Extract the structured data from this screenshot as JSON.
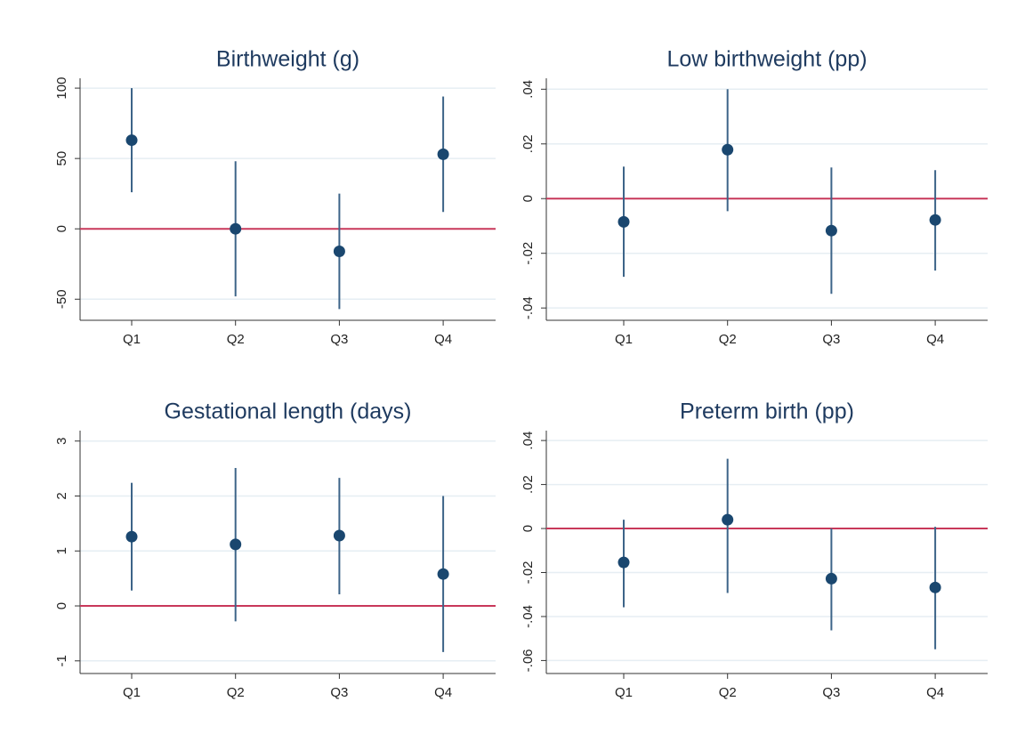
{
  "chart_data": [
    {
      "type": "errorbar",
      "title": "Birthweight (g)",
      "categories": [
        "Q1",
        "Q2",
        "Q3",
        "Q4"
      ],
      "values": [
        63,
        0,
        -16,
        53
      ],
      "lower": [
        26,
        -48,
        -57,
        12
      ],
      "upper": [
        100,
        48,
        25,
        94
      ],
      "color": "#1a476f",
      "ylim": [
        -65,
        107
      ],
      "yticks": [
        -50,
        0,
        50,
        100
      ],
      "grid": true,
      "refline": 0,
      "refline_color": "#c8385a"
    },
    {
      "type": "errorbar",
      "title": "Low birthweight (pp)",
      "categories": [
        "Q1",
        "Q2",
        "Q3",
        "Q4"
      ],
      "values": [
        -0.0085,
        0.0179,
        -0.0117,
        -0.0078
      ],
      "lower": [
        -0.0286,
        -0.0046,
        -0.0348,
        -0.0263
      ],
      "upper": [
        0.0117,
        0.04,
        0.0114,
        0.0104
      ],
      "color": "#1a476f",
      "ylim": [
        -0.0445,
        0.044
      ],
      "yticks": [
        {
          "value": -0.04,
          "label": "-.04"
        },
        {
          "value": -0.02,
          "label": "-.02"
        },
        0,
        {
          "value": 0.02,
          "label": ".02"
        },
        {
          "value": 0.04,
          "label": ".04"
        }
      ],
      "grid": true,
      "refline": 0,
      "refline_color": "#c8385a"
    },
    {
      "type": "errorbar",
      "title": "Gestational length (days)",
      "categories": [
        "Q1",
        "Q2",
        "Q3",
        "Q4"
      ],
      "values": [
        1.26,
        1.12,
        1.28,
        0.58
      ],
      "lower": [
        0.28,
        -0.28,
        0.21,
        -0.84
      ],
      "upper": [
        2.24,
        2.51,
        2.33,
        2.0
      ],
      "color": "#1a476f",
      "ylim": [
        -1.23,
        3.19
      ],
      "yticks": [
        -1,
        0,
        1,
        2,
        3
      ],
      "grid": true,
      "refline": 0,
      "refline_color": "#c8385a"
    },
    {
      "type": "errorbar",
      "title": "Preterm birth (pp)",
      "categories": [
        "Q1",
        "Q2",
        "Q3",
        "Q4"
      ],
      "values": [
        -0.0154,
        0.004,
        -0.0228,
        -0.0268
      ],
      "lower": [
        -0.0358,
        -0.0293,
        -0.0463,
        -0.0549
      ],
      "upper": [
        0.004,
        0.0317,
        0,
        0.0008
      ],
      "color": "#1a476f",
      "ylim": [
        -0.0659,
        0.0445
      ],
      "yticks": [
        {
          "value": -0.06,
          "label": "-.06"
        },
        {
          "value": -0.04,
          "label": "-.04"
        },
        {
          "value": -0.02,
          "label": "-.02"
        },
        0,
        {
          "value": 0.02,
          "label": ".02"
        },
        {
          "value": 0.04,
          "label": ".04"
        }
      ],
      "grid": true,
      "refline": 0,
      "refline_color": "#c8385a"
    }
  ]
}
